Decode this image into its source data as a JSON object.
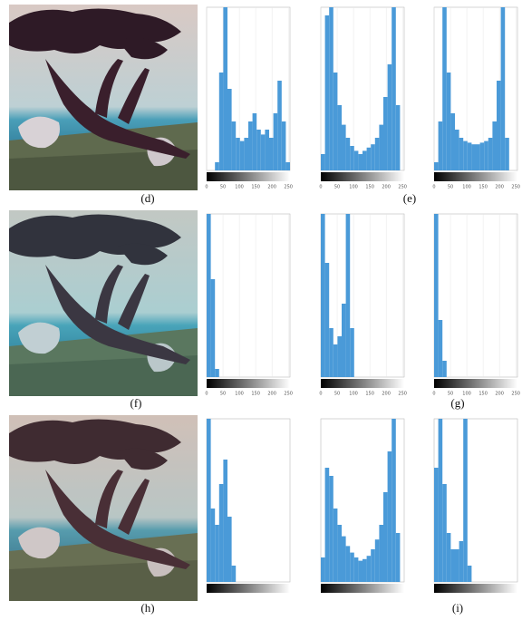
{
  "figure": {
    "xlim": [
      0,
      255
    ],
    "rows": [
      {
        "captions": [
          "(d)",
          "(e)"
        ],
        "xticks": [
          0,
          50,
          100,
          150,
          200,
          250
        ],
        "histograms": [
          {
            "ylim": [
              0,
              100
            ],
            "values": [
              0,
              0,
              5,
              60,
              100,
              50,
              30,
              20,
              18,
              20,
              30,
              35,
              25,
              22,
              25,
              20,
              35,
              55,
              30,
              5
            ]
          },
          {
            "ylim": [
              0,
              100
            ],
            "values": [
              10,
              95,
              100,
              60,
              40,
              28,
              20,
              15,
              12,
              10,
              12,
              14,
              16,
              20,
              28,
              45,
              65,
              100,
              40,
              0
            ]
          },
          {
            "ylim": [
              0,
              100
            ],
            "values": [
              5,
              30,
              100,
              60,
              35,
              25,
              20,
              18,
              17,
              16,
              16,
              17,
              18,
              20,
              30,
              55,
              100,
              20,
              0,
              0
            ]
          }
        ]
      },
      {
        "captions": [
          "(f)",
          "(g)"
        ],
        "xticks": [
          0,
          50,
          100,
          150,
          200,
          250
        ],
        "histograms": [
          {
            "ylim": [
              0,
              100
            ],
            "values": [
              100,
              60,
              5,
              0,
              0,
              0,
              0,
              0,
              0,
              0,
              0,
              0,
              0,
              0,
              0,
              0,
              0,
              0,
              0,
              0
            ]
          },
          {
            "ylim": [
              0,
              100
            ],
            "values": [
              100,
              70,
              30,
              20,
              25,
              45,
              100,
              30,
              0,
              0,
              0,
              0,
              0,
              0,
              0,
              0,
              0,
              0,
              0,
              0
            ]
          },
          {
            "ylim": [
              0,
              100
            ],
            "values": [
              100,
              35,
              10,
              0,
              0,
              0,
              0,
              0,
              0,
              0,
              0,
              0,
              0,
              0,
              0,
              0,
              0,
              0,
              0,
              0
            ]
          }
        ]
      },
      {
        "captions": [
          "(h)",
          "(i)"
        ],
        "histograms": [
          {
            "ylim": [
              0,
              100
            ],
            "values": [
              100,
              45,
              35,
              60,
              75,
              40,
              10,
              0,
              0,
              0,
              0,
              0,
              0,
              0,
              0,
              0,
              0,
              0,
              0,
              0
            ]
          },
          {
            "ylim": [
              0,
              100
            ],
            "values": [
              15,
              70,
              65,
              45,
              35,
              28,
              22,
              18,
              15,
              13,
              14,
              16,
              20,
              26,
              35,
              55,
              80,
              100,
              30,
              0
            ]
          },
          {
            "ylim": [
              0,
              100
            ],
            "values": [
              70,
              100,
              60,
              30,
              20,
              20,
              25,
              100,
              10,
              0,
              0,
              0,
              0,
              0,
              0,
              0,
              0,
              0,
              0,
              0
            ]
          }
        ]
      }
    ]
  }
}
